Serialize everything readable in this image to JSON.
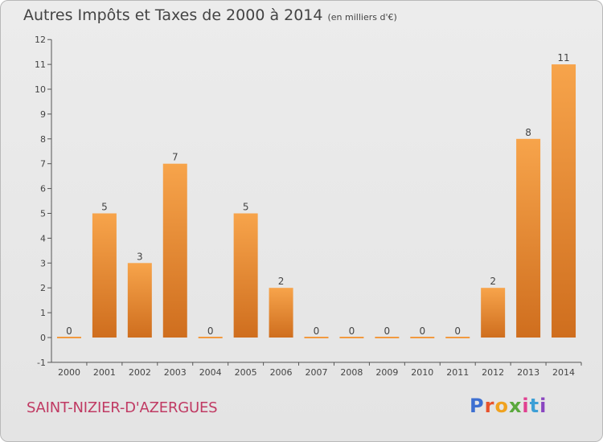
{
  "title": "Autres Impôts et Taxes de 2000 à 2014",
  "title_unit": "(en milliers d'€)",
  "location": "SAINT-NIZIER-D'AZERGUES",
  "brand": {
    "text": "Proxiti",
    "letter_colors": [
      "#3d6fd1",
      "#e8522c",
      "#f0a21f",
      "#5aa83c",
      "#e04090",
      "#3d9fd6",
      "#8a45c0"
    ]
  },
  "chart_data": {
    "type": "bar",
    "categories": [
      "2000",
      "2001",
      "2002",
      "2003",
      "2004",
      "2005",
      "2006",
      "2007",
      "2008",
      "2009",
      "2010",
      "2011",
      "2012",
      "2013",
      "2014"
    ],
    "values": [
      0,
      5,
      3,
      7,
      0,
      5,
      2,
      0,
      0,
      0,
      0,
      0,
      2,
      8,
      11
    ],
    "title": "Autres Impôts et Taxes de 2000 à 2014",
    "xlabel": "",
    "ylabel": "",
    "ylim": [
      -1,
      12
    ],
    "yticks": [
      -1,
      0,
      1,
      2,
      3,
      4,
      5,
      6,
      7,
      8,
      9,
      10,
      11,
      12
    ],
    "grid": false,
    "bar_color": "#f29a3f"
  }
}
